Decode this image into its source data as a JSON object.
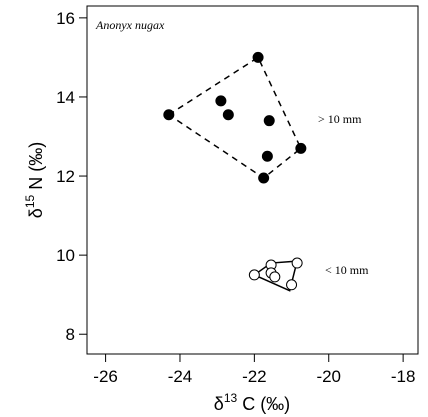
{
  "chart_data": {
    "type": "scatter",
    "title": "Anonyx nugax",
    "xlabel": {
      "prefix": "δ",
      "sup": "13",
      "suffix": " C (‰)"
    },
    "ylabel": {
      "prefix": "δ",
      "sup": "15",
      "suffix": " N (‰)"
    },
    "xlim": [
      -26.5,
      -17.6
    ],
    "ylim": [
      7.5,
      16.3
    ],
    "xticks": [
      -26,
      -24,
      -22,
      -20,
      -18
    ],
    "xtick_labels": [
      "-26",
      "-24",
      "-22",
      "-20",
      "-18"
    ],
    "yticks": [
      8,
      10,
      12,
      14,
      16
    ],
    "ytick_labels": [
      "8",
      "10",
      "12",
      "14",
      "16"
    ],
    "grid": false,
    "series": [
      {
        "name": "> 10 mm",
        "marker": "filled-circle",
        "color": "#000000",
        "hull_style": "dashed",
        "points": [
          {
            "x": -24.3,
            "y": 13.55
          },
          {
            "x": -22.9,
            "y": 13.9
          },
          {
            "x": -22.7,
            "y": 13.55
          },
          {
            "x": -21.9,
            "y": 15.0
          },
          {
            "x": -21.6,
            "y": 13.4
          },
          {
            "x": -21.65,
            "y": 12.5
          },
          {
            "x": -21.75,
            "y": 11.95
          },
          {
            "x": -20.75,
            "y": 12.7
          }
        ],
        "hull": [
          [
            -24.3,
            13.55
          ],
          [
            -21.9,
            15.0
          ],
          [
            -20.75,
            12.7
          ],
          [
            -21.75,
            11.95
          ]
        ]
      },
      {
        "name": "< 10 mm",
        "marker": "open-circle",
        "color": "#000000",
        "hull_style": "solid",
        "points": [
          {
            "x": -22.0,
            "y": 9.5
          },
          {
            "x": -21.55,
            "y": 9.75
          },
          {
            "x": -21.55,
            "y": 9.55
          },
          {
            "x": -21.45,
            "y": 9.45
          },
          {
            "x": -21.0,
            "y": 9.25
          },
          {
            "x": -20.85,
            "y": 9.8
          }
        ],
        "hull": [
          [
            -22.0,
            9.5
          ],
          [
            -21.55,
            9.8
          ],
          [
            -20.85,
            9.85
          ],
          [
            -21.05,
            9.1
          ]
        ]
      }
    ],
    "annotations": [
      {
        "text": "> 10 mm",
        "series": 0
      },
      {
        "text": "< 10 mm",
        "series": 1
      }
    ]
  }
}
